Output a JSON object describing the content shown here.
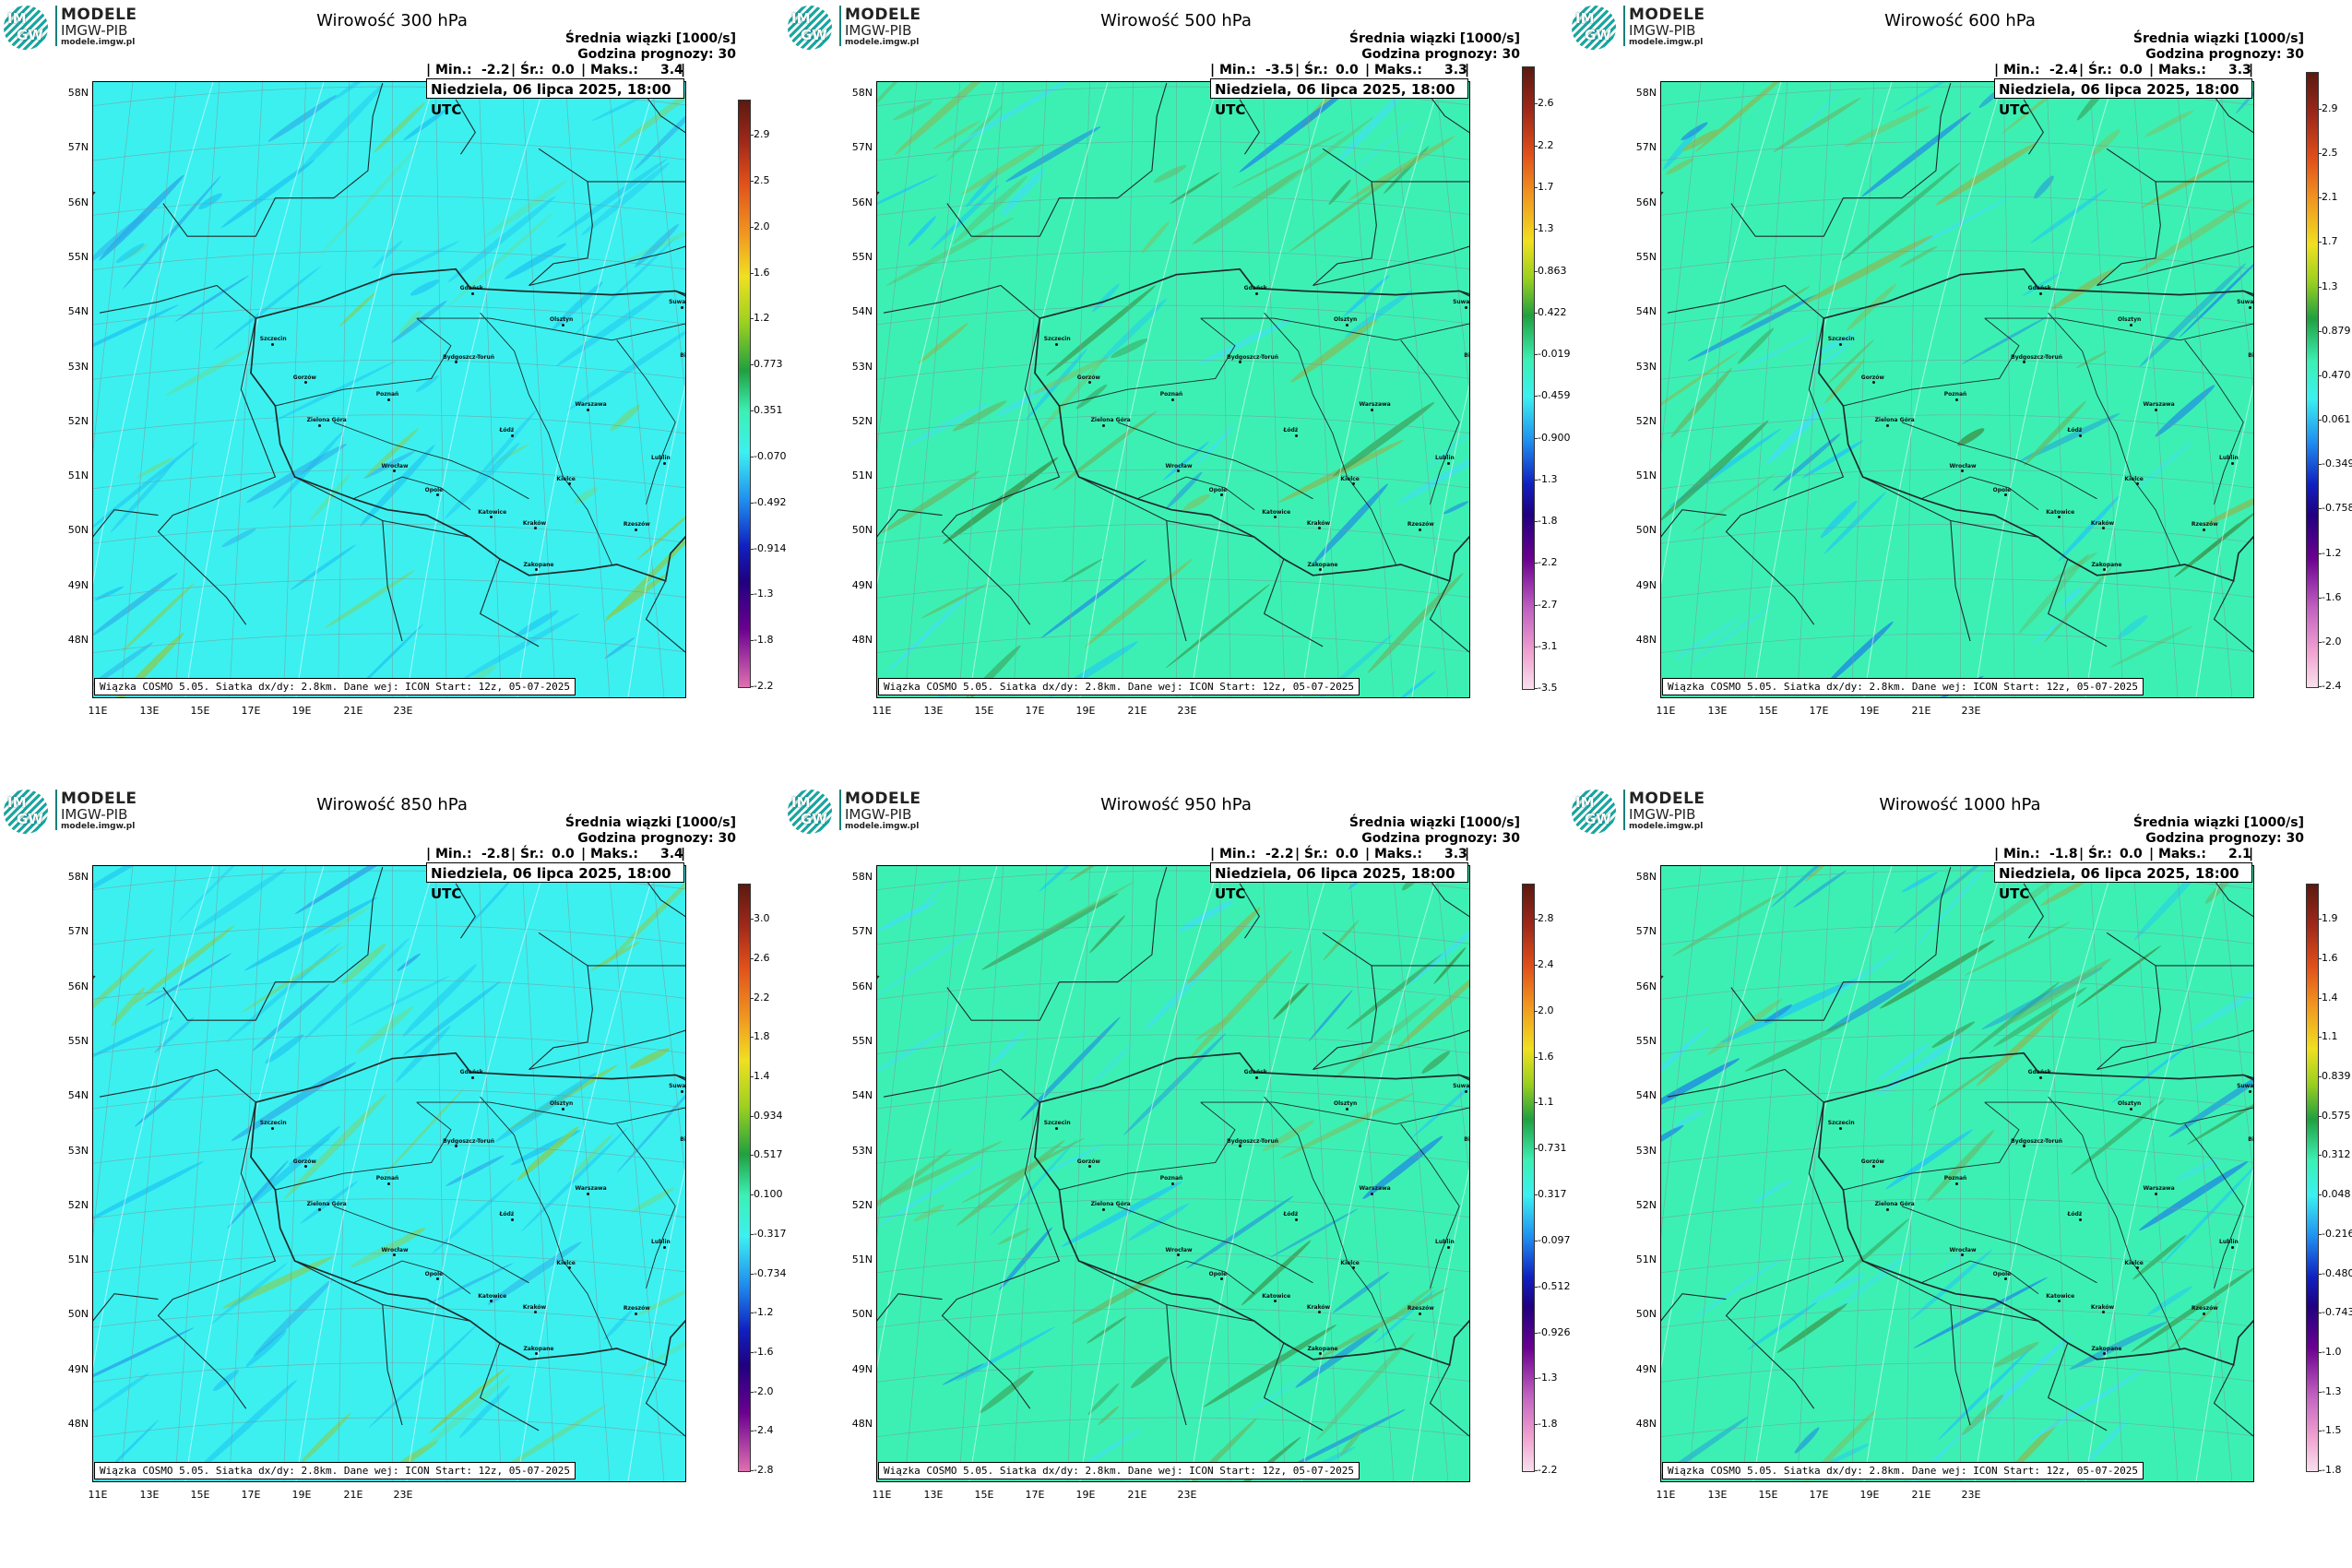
{
  "branding": {
    "line1": "MODELE",
    "line2": "IMGW-PIB",
    "line3": "modele.imgw.pl",
    "mark_top": "IM",
    "mark_bottom": "GW"
  },
  "common": {
    "subtitle": "Średnia wiązki [1000/s]",
    "forecast_hour": "Godzina prognozy: 30",
    "datetime": "Niedziela, 06 lipca 2025, 18:00 UTC",
    "footer": "Wiązka COSMO 5.05. Siatka dx/dy: 2.8km. Dane wej: ICON Start: 12z, 05-07-2025",
    "min_label": "| Min.:",
    "avg_label": "| Śr.:",
    "max_label": "| Maks.:",
    "end_bar": "|",
    "lat_labels": [
      "58N",
      "57N",
      "56N",
      "55N",
      "54N",
      "53N",
      "52N",
      "51N",
      "50N",
      "49N",
      "48N"
    ],
    "lon_labels": [
      "11E",
      "13E",
      "15E",
      "17E",
      "19E",
      "21E",
      "23E"
    ]
  },
  "colors": {
    "cyan_field": "#3cf0f0",
    "green_field": "#3cf0b4",
    "border": "#1e2a2a"
  },
  "panels": [
    {
      "title": "Wirowość 300 hPa",
      "min": "-2.2",
      "avg": "0.0",
      "max": "3.4",
      "field": "cyan",
      "cbar_labels": [
        "2.9",
        "2.5",
        "2.0",
        "1.6",
        "1.2",
        "0.773",
        "0.351",
        "-0.070",
        "-0.492",
        "-0.914",
        "-1.3",
        "-1.8",
        "-2.2"
      ]
    },
    {
      "title": "Wirowość 500 hPa",
      "min": "-3.5",
      "avg": "0.0",
      "max": "3.3",
      "field": "green",
      "cbar_labels": [
        "2.6",
        "2.2",
        "1.7",
        "1.3",
        "0.863",
        "0.422",
        "-0.019",
        "-0.459",
        "-0.900",
        "-1.3",
        "-1.8",
        "-2.2",
        "-2.7",
        "-3.1",
        "-3.5"
      ]
    },
    {
      "title": "Wirowość 600 hPa",
      "min": "-2.4",
      "avg": "0.0",
      "max": "3.3",
      "field": "green",
      "cbar_labels": [
        "2.9",
        "2.5",
        "2.1",
        "1.7",
        "1.3",
        "0.879",
        "0.470",
        "0.061",
        "-0.349",
        "-0.758",
        "-1.2",
        "-1.6",
        "-2.0",
        "-2.4"
      ]
    },
    {
      "title": "Wirowość 850 hPa",
      "min": "-2.8",
      "avg": "0.0",
      "max": "3.4",
      "field": "cyan",
      "cbar_labels": [
        "3.0",
        "2.6",
        "2.2",
        "1.8",
        "1.4",
        "0.934",
        "0.517",
        "0.100",
        "-0.317",
        "-0.734",
        "-1.2",
        "-1.6",
        "-2.0",
        "-2.4",
        "-2.8"
      ]
    },
    {
      "title": "Wirowość 950 hPa",
      "min": "-2.2",
      "avg": "0.0",
      "max": "3.3",
      "field": "green",
      "cbar_labels": [
        "2.8",
        "2.4",
        "2.0",
        "1.6",
        "1.1",
        "0.731",
        "0.317",
        "-0.097",
        "-0.512",
        "-0.926",
        "-1.3",
        "-1.8",
        "-2.2"
      ]
    },
    {
      "title": "Wirowość 1000 hPa",
      "min": "-1.8",
      "avg": "0.0",
      "max": "2.1",
      "field": "green",
      "cbar_labels": [
        "1.9",
        "1.6",
        "1.4",
        "1.1",
        "0.839",
        "0.575",
        "0.312",
        "0.048",
        "-0.216",
        "-0.480",
        "-0.743",
        "-1.0",
        "-1.3",
        "-1.5",
        "-1.8"
      ]
    }
  ],
  "cities": [
    {
      "name": "Gdańsk",
      "lon": 18.65,
      "lat": 54.35
    },
    {
      "name": "Olsztyn",
      "lon": 20.49,
      "lat": 53.78
    },
    {
      "name": "Suwałki",
      "lon": 22.93,
      "lat": 54.1
    },
    {
      "name": "Białystok",
      "lon": 23.16,
      "lat": 53.13
    },
    {
      "name": "Szczecin",
      "lon": 14.55,
      "lat": 53.43
    },
    {
      "name": "Bydgoszcz-Toruń",
      "lon": 18.3,
      "lat": 53.1
    },
    {
      "name": "Gorzów",
      "lon": 15.23,
      "lat": 52.73
    },
    {
      "name": "Poznań",
      "lon": 16.93,
      "lat": 52.41
    },
    {
      "name": "Warszawa",
      "lon": 21.01,
      "lat": 52.23
    },
    {
      "name": "Zielona Góra",
      "lon": 15.51,
      "lat": 51.94
    },
    {
      "name": "Łódź",
      "lon": 19.46,
      "lat": 51.76
    },
    {
      "name": "Lublin",
      "lon": 22.57,
      "lat": 51.25
    },
    {
      "name": "Wrocław",
      "lon": 17.04,
      "lat": 51.11
    },
    {
      "name": "Kielce",
      "lon": 20.63,
      "lat": 50.87
    },
    {
      "name": "Opole",
      "lon": 17.93,
      "lat": 50.67
    },
    {
      "name": "Katowice",
      "lon": 19.02,
      "lat": 50.26
    },
    {
      "name": "Kraków",
      "lon": 19.94,
      "lat": 50.06
    },
    {
      "name": "Rzeszów",
      "lon": 22.0,
      "lat": 50.04
    },
    {
      "name": "Zakopane",
      "lon": 19.95,
      "lat": 49.3
    }
  ]
}
